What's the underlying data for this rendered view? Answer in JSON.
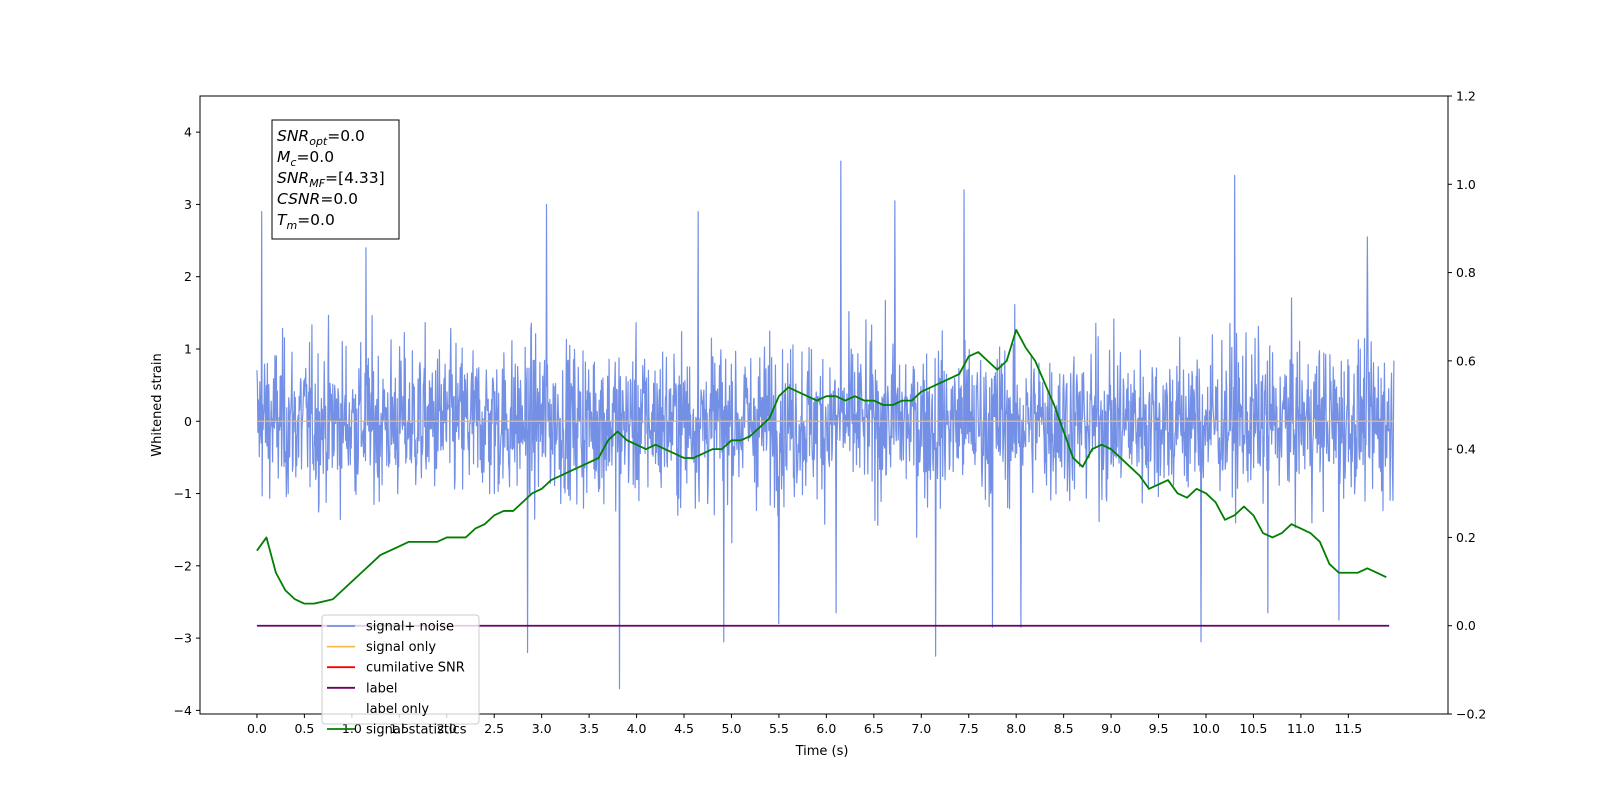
{
  "chart_data": {
    "type": "line",
    "xlabel": "Time (s)",
    "ylabel": "Whitened strain",
    "xlim": [
      -0.6,
      12.55
    ],
    "ylim": [
      -4.05,
      4.5
    ],
    "y2lim": [
      -0.2,
      1.2
    ],
    "x_ticks": [
      "0.0",
      "0.5",
      "1.0",
      "1.5",
      "2.0",
      "2.5",
      "3.0",
      "3.5",
      "4.0",
      "4.5",
      "5.0",
      "5.5",
      "6.0",
      "6.5",
      "7.0",
      "7.5",
      "8.0",
      "8.5",
      "9.0",
      "9.5",
      "10.0",
      "10.5",
      "11.0",
      "11.5"
    ],
    "y_ticks": [
      "4",
      "3",
      "2",
      "1",
      "0",
      "−1",
      "−2",
      "−3",
      "−4"
    ],
    "y2_ticks": [
      "1.2",
      "1.0",
      "0.8",
      "0.6",
      "0.4",
      "0.2",
      "0.0",
      "−0.2"
    ],
    "grid": false,
    "legend_position": "lower-left",
    "annotation": {
      "lines": [
        {
          "base": "SNR",
          "sub": "opt",
          "value": "=0.0"
        },
        {
          "base": "M",
          "sub": "c",
          "value": "=0.0"
        },
        {
          "base": "SNR",
          "sub": "MF",
          "value": "=[4.33]"
        },
        {
          "base": "CSNR",
          "sub": "",
          "value": "=0.0"
        },
        {
          "base": "T",
          "sub": "m",
          "value": "=0.0"
        }
      ]
    },
    "series": [
      {
        "name": "signal+ noise",
        "color": "#7390e6",
        "axis": "left",
        "kind": "noise",
        "x_range": [
          0.0,
          11.98
        ],
        "typical_range": [
          -1.6,
          1.6
        ],
        "spikes": [
          [
            0.05,
            2.9
          ],
          [
            1.15,
            2.4
          ],
          [
            2.85,
            -3.2
          ],
          [
            3.05,
            3.0
          ],
          [
            3.82,
            -3.7
          ],
          [
            4.65,
            2.9
          ],
          [
            4.92,
            -3.05
          ],
          [
            5.5,
            -2.8
          ],
          [
            6.15,
            3.6
          ],
          [
            6.1,
            -2.65
          ],
          [
            6.72,
            3.05
          ],
          [
            7.15,
            -3.25
          ],
          [
            7.45,
            3.2
          ],
          [
            7.75,
            -2.85
          ],
          [
            8.05,
            -2.85
          ],
          [
            9.95,
            -3.05
          ],
          [
            10.3,
            3.4
          ],
          [
            10.65,
            -2.65
          ],
          [
            11.4,
            -2.75
          ],
          [
            11.7,
            2.55
          ]
        ]
      },
      {
        "name": "signal only",
        "color": "#ffb84d",
        "axis": "left",
        "value": 0.0
      },
      {
        "name": "cumilative SNR",
        "color": "#ff0000",
        "axis": "right",
        "value": 0.0
      },
      {
        "name": "label",
        "color": "#6a006a",
        "axis": "right",
        "value": 0.0
      },
      {
        "name": "label only",
        "color": "#ffffff",
        "axis": "right",
        "hidden": true
      },
      {
        "name": "signal statistics",
        "color": "#007f00",
        "axis": "right",
        "x": [
          0.0,
          0.1,
          0.2,
          0.3,
          0.4,
          0.5,
          0.6,
          0.7,
          0.8,
          0.9,
          1.0,
          1.1,
          1.2,
          1.3,
          1.4,
          1.5,
          1.6,
          1.7,
          1.8,
          1.9,
          2.0,
          2.1,
          2.2,
          2.3,
          2.4,
          2.5,
          2.6,
          2.7,
          2.8,
          2.9,
          3.0,
          3.1,
          3.2,
          3.3,
          3.4,
          3.5,
          3.6,
          3.7,
          3.8,
          3.9,
          4.0,
          4.1,
          4.2,
          4.3,
          4.4,
          4.5,
          4.6,
          4.7,
          4.8,
          4.9,
          5.0,
          5.1,
          5.2,
          5.3,
          5.4,
          5.5,
          5.6,
          5.7,
          5.8,
          5.9,
          6.0,
          6.1,
          6.2,
          6.3,
          6.4,
          6.5,
          6.6,
          6.7,
          6.8,
          6.9,
          7.0,
          7.1,
          7.2,
          7.3,
          7.4,
          7.5,
          7.6,
          7.7,
          7.8,
          7.9,
          8.0,
          8.1,
          8.2,
          8.3,
          8.4,
          8.5,
          8.6,
          8.7,
          8.8,
          8.9,
          9.0,
          9.1,
          9.2,
          9.3,
          9.4,
          9.5,
          9.6,
          9.7,
          9.8,
          9.9,
          10.0,
          10.1,
          10.2,
          10.3,
          10.4,
          10.5,
          10.6,
          10.7,
          10.8,
          10.9,
          11.0,
          11.1,
          11.2,
          11.3,
          11.4,
          11.5,
          11.6,
          11.7,
          11.8,
          11.9
        ],
        "y": [
          0.17,
          0.2,
          0.12,
          0.08,
          0.06,
          0.05,
          0.05,
          0.055,
          0.06,
          0.08,
          0.1,
          0.12,
          0.14,
          0.16,
          0.17,
          0.18,
          0.19,
          0.19,
          0.19,
          0.19,
          0.2,
          0.2,
          0.2,
          0.22,
          0.23,
          0.25,
          0.26,
          0.26,
          0.28,
          0.3,
          0.31,
          0.33,
          0.34,
          0.35,
          0.36,
          0.37,
          0.38,
          0.42,
          0.44,
          0.42,
          0.41,
          0.4,
          0.41,
          0.4,
          0.39,
          0.38,
          0.38,
          0.39,
          0.4,
          0.4,
          0.42,
          0.42,
          0.43,
          0.45,
          0.47,
          0.52,
          0.54,
          0.53,
          0.52,
          0.51,
          0.52,
          0.52,
          0.51,
          0.52,
          0.51,
          0.51,
          0.5,
          0.5,
          0.51,
          0.51,
          0.53,
          0.54,
          0.55,
          0.56,
          0.57,
          0.61,
          0.62,
          0.6,
          0.58,
          0.6,
          0.67,
          0.63,
          0.6,
          0.55,
          0.5,
          0.44,
          0.38,
          0.36,
          0.4,
          0.41,
          0.4,
          0.38,
          0.36,
          0.34,
          0.31,
          0.32,
          0.33,
          0.3,
          0.29,
          0.31,
          0.3,
          0.28,
          0.24,
          0.25,
          0.27,
          0.25,
          0.21,
          0.2,
          0.21,
          0.23,
          0.22,
          0.21,
          0.19,
          0.14,
          0.12,
          0.12,
          0.12,
          0.13,
          0.12,
          0.11
        ]
      }
    ]
  }
}
